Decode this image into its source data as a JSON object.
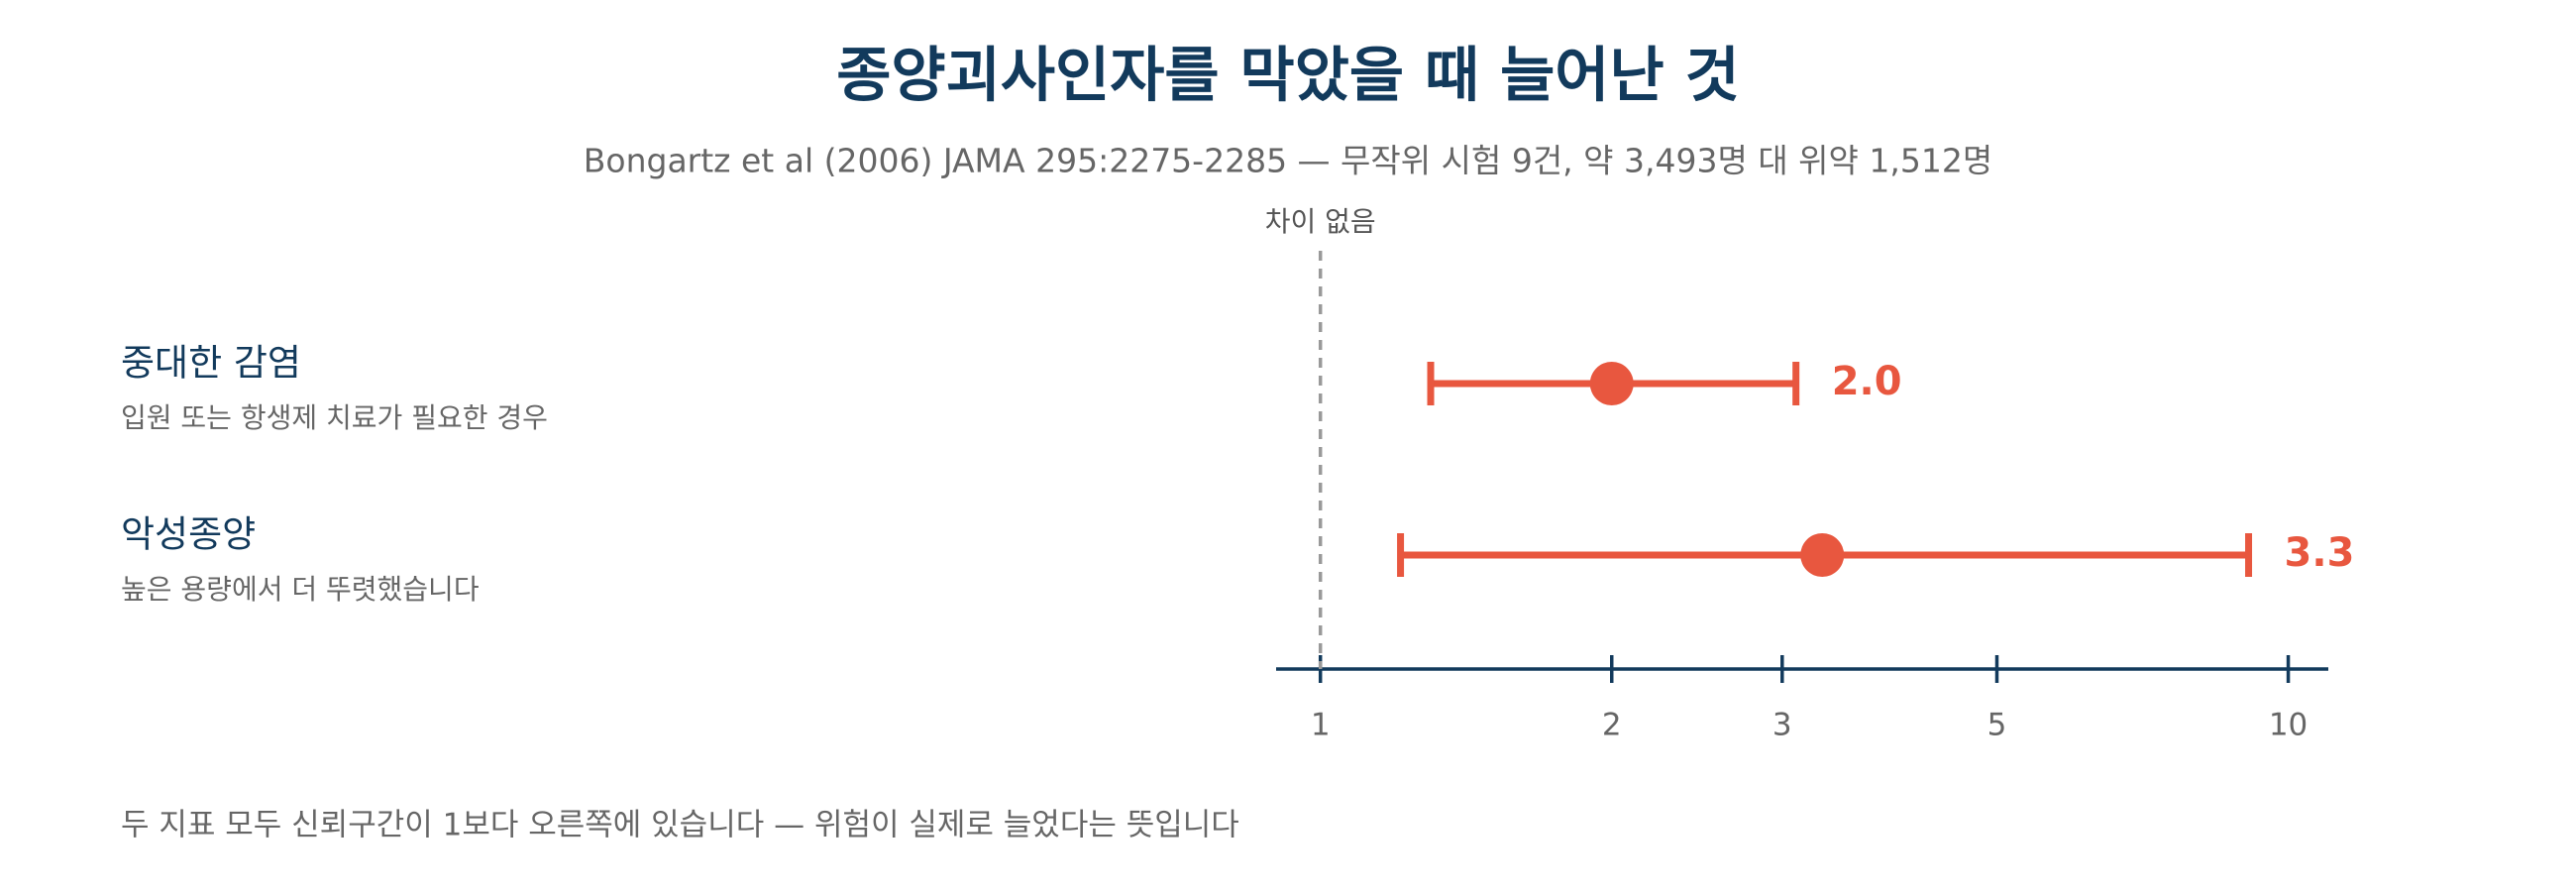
{
  "chart_data": {
    "type": "forest",
    "title": "종양괴사인자를 막았을 때 늘어난 것",
    "subtitle": "Bongartz et al (2006) JAMA 295:2275-2285 — 무작위 시험 9건, 약 3,493명 대 위약 1,512명",
    "reference": {
      "value": 1,
      "label": "차이 없음"
    },
    "rows": [
      {
        "label": "중대한 감염",
        "sublabel": "입원 또는 항생제 치료가 필요한 경우",
        "value": 2,
        "value_label": "2.0",
        "ci": [
          1.3,
          3.1
        ]
      },
      {
        "label": "악성종양",
        "sublabel": "높은 용량에서 더 뚜렷했습니다",
        "value": 3.3,
        "value_label": "3.3",
        "ci": [
          1.21,
          9.1
        ]
      }
    ],
    "color": "#e8573f",
    "log_scale": true,
    "xlim": [
      0.9,
      11
    ],
    "xticks": [
      1,
      2,
      3,
      5,
      10
    ],
    "footnote": "두 지표 모두 신뢰구간이 1보다 오른쪽에 있습니다 — 위험이 실제로 늘었다는 뜻입니다"
  }
}
